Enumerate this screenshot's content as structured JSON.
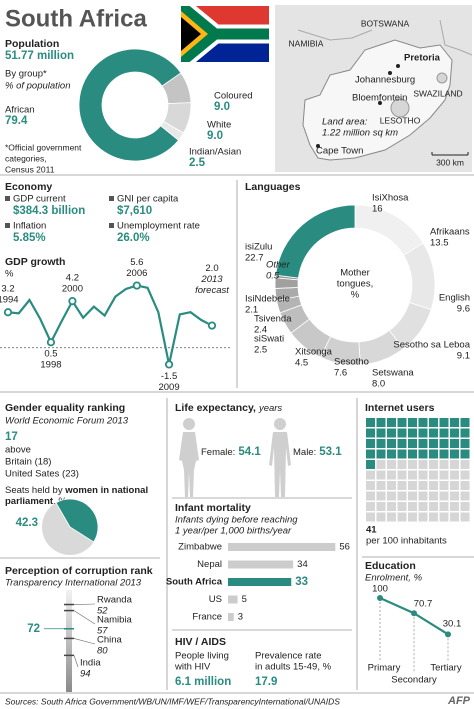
{
  "accent": "#2a8c80",
  "header": {
    "title": "South Africa"
  },
  "map": {
    "labels": [
      "BOTSWANA",
      "NAMIBIA",
      "Pretoria",
      "Johannesburg",
      "SWAZILAND",
      "Bloemfontein",
      "LESOTHO",
      "Land area:",
      "1.22 million sq km",
      "Cape Town",
      "300 km"
    ]
  },
  "population": {
    "title": "Population",
    "total": "51.77 million",
    "subtitle": "By group*",
    "unit": "% of population",
    "note": [
      "*Official government",
      "categories,",
      "Census 2011"
    ],
    "chart_data": {
      "type": "pie",
      "categories": [
        "African",
        "Coloured",
        "White",
        "Indian/Asian"
      ],
      "values": [
        79.4,
        9.0,
        9.0,
        2.5
      ],
      "value_labels": [
        "79.4",
        "9.0",
        "9.0",
        "2.5"
      ],
      "colors": [
        "#2a8c80",
        "#c4c4c4",
        "#d8d8d8",
        "#e8e8e8"
      ]
    }
  },
  "economy": {
    "title": "Economy",
    "items": [
      {
        "label": "GDP current",
        "value": "$384.3 billion"
      },
      {
        "label": "GNI per capita",
        "value": "$7,610"
      },
      {
        "label": "Inflation",
        "value": "5.85%"
      },
      {
        "label": "Unemployment rate",
        "value": "26.0%"
      }
    ]
  },
  "gdp": {
    "title": "GDP growth",
    "unit": "%",
    "annotation": "forecast",
    "chart_data": {
      "type": "line",
      "color": "#2a8c80",
      "xlim": [
        1994,
        2013
      ],
      "ylim": [
        -2,
        7
      ],
      "x": [
        1994,
        1995,
        1996,
        1997,
        1998,
        1999,
        2000,
        2001,
        2002,
        2003,
        2004,
        2005,
        2006,
        2007,
        2008,
        2009,
        2010,
        2011,
        2012,
        2013
      ],
      "values": [
        3.2,
        3.1,
        4.3,
        2.6,
        0.5,
        2.4,
        4.2,
        2.7,
        3.7,
        2.9,
        4.6,
        5.3,
        5.6,
        5.4,
        3.2,
        -1.5,
        3.0,
        3.2,
        2.5,
        2.0
      ],
      "value_labels": [
        "3.2",
        null,
        null,
        null,
        "0.5",
        null,
        "4.2",
        null,
        null,
        null,
        null,
        null,
        "5.6",
        null,
        null,
        "-1.5",
        null,
        null,
        null,
        "2.0"
      ]
    }
  },
  "languages": {
    "title": "Languages",
    "center": [
      "Mother",
      "tongues,",
      "%"
    ],
    "chart_data": {
      "type": "pie",
      "categories": [
        "IsiXhosa",
        "Afrikaans",
        "English",
        "Sesotho sa Leboa",
        "Setswana",
        "Sesotho",
        "Xitsonga",
        "siSwati",
        "Tsivenda",
        "IsiNdebele",
        "Other",
        "isiZulu"
      ],
      "values": [
        16,
        13.5,
        9.6,
        9.1,
        8.0,
        7.6,
        4.5,
        2.5,
        2.4,
        2.1,
        0.5,
        22.7
      ],
      "value_labels": [
        "16",
        "13.5",
        "9.6",
        "9.1",
        "8.0",
        "7.6",
        "4.5",
        "2.5",
        "2.4",
        "2.1",
        "0.5",
        "22.7"
      ],
      "colors": [
        "#f0f0f0",
        "#e8e8e8",
        "#e0e0e0",
        "#d8d8d8",
        "#d0d0d0",
        "#c8c8c8",
        "#bebebe",
        "#b4b4b4",
        "#aaaaaa",
        "#a0a0a0",
        "#969696",
        "#2a8c80"
      ]
    }
  },
  "gender": {
    "title": "Gender equality ranking",
    "source": "World Economic Forum 2013",
    "rank": 17,
    "rank_text": [
      "above",
      "Britain (18)",
      "United Sates (23)"
    ],
    "seats_label": [
      "Seats held by ",
      "women in national",
      "parliament",
      ", %"
    ],
    "chart_data": {
      "type": "pie",
      "values": [
        42.3
      ],
      "color": "#2a8c80"
    }
  },
  "corruption": {
    "title": "Perception of corruption rank",
    "source": "Transparency International 2013",
    "chart_data": {
      "type": "rank",
      "categories": [
        null,
        "Rwanda",
        "Namibia",
        "China",
        "India"
      ],
      "values": [
        72,
        52,
        57,
        80,
        94
      ],
      "ylim": [
        40,
        135
      ]
    }
  },
  "life": {
    "title": "Life expectancy,",
    "unit": "years",
    "female_label": "Female:",
    "female": 54.1,
    "male_label": "Male:",
    "male": 53.1
  },
  "infant": {
    "title": "Infant mortality",
    "subtitle": [
      "Infants dying before reaching",
      "1 year/per 1,000 births/year"
    ],
    "chart_data": {
      "type": "bar",
      "categories": [
        "Zimbabwe",
        "Nepal",
        "South Africa",
        "US",
        "France"
      ],
      "values": [
        56,
        34,
        33,
        5,
        3
      ],
      "colors": [
        "#cccccc",
        "#cccccc",
        "#2a8c80",
        "#cccccc",
        "#cccccc"
      ],
      "xlim": [
        0,
        60
      ]
    }
  },
  "hiv": {
    "title": "HIV / AIDS",
    "people_label": [
      "People living",
      "with HIV"
    ],
    "people": "6.1 million",
    "prevalence_label": [
      "Prevalence rate",
      "in adults 15-49, %"
    ],
    "prevalence": 17.9
  },
  "internet": {
    "title": "Internet users",
    "value": 41,
    "unit": "per 100 inhabitants"
  },
  "education": {
    "title": "Education",
    "subtitle": "Enrolment, %",
    "chart_data": {
      "type": "line",
      "categories": [
        "Primary",
        "Secondary",
        "Tertiary"
      ],
      "values": [
        100,
        70.7,
        30.1
      ],
      "ylim": [
        0,
        100
      ]
    }
  },
  "footer": {
    "sources": "Sources: South Africa Government/WB/UN/IMF/WEF/TransparencyInternational/UNAIDS",
    "credit": "AFP"
  }
}
